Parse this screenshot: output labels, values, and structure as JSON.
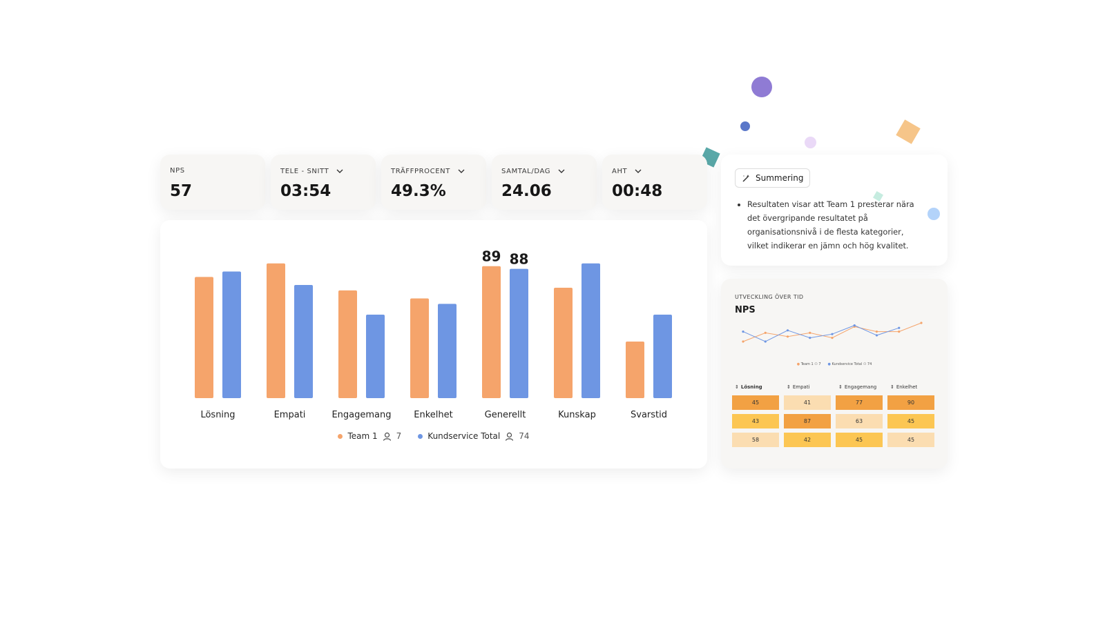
{
  "kpis": [
    {
      "label": "NPS",
      "value": "57",
      "dropdown": false
    },
    {
      "label": "TELE - SNITT",
      "value": "03:54",
      "dropdown": true
    },
    {
      "label": "TRÄFFPROCENT",
      "value": "49.3%",
      "dropdown": true
    },
    {
      "label": "SAMTAL/DAG",
      "value": "24.06",
      "dropdown": true
    },
    {
      "label": "AHT",
      "value": "00:48",
      "dropdown": true
    }
  ],
  "chart_data": {
    "type": "bar",
    "categories": [
      "Lösning",
      "Empati",
      "Engagemang",
      "Enkelhet",
      "Generellt",
      "Kunskap",
      "Svarstid"
    ],
    "series": [
      {
        "name": "Team 1",
        "values": [
          85,
          90,
          80,
          77,
          89,
          81,
          61
        ],
        "color": "#f5a46b"
      },
      {
        "name": "Kundservice Total",
        "values": [
          87,
          82,
          71,
          75,
          88,
          90,
          71
        ],
        "color": "#6e96e3"
      }
    ],
    "data_labels": {
      "category": "Generellt",
      "values": [
        "89",
        "88"
      ]
    },
    "ylim": [
      40,
      92
    ]
  },
  "legend": {
    "team1": {
      "label": "Team 1",
      "count": "7",
      "color": "#f5a46b"
    },
    "total": {
      "label": "Kundservice Total",
      "count": "74",
      "color": "#6e96e3"
    }
  },
  "summary": {
    "button_label": "Summering",
    "text": "Resultaten visar att Team 1 presterar nära det övergripande resultatet på organisationsnivå i de flesta kategorier, vilket indikerar en jämn och hög kvalitet."
  },
  "trend": {
    "small_title": "UTVECKLING ÖVER TID",
    "title": "NPS",
    "chart_data": {
      "type": "line",
      "series": [
        {
          "name": "Team 1",
          "values": [
            45,
            52,
            49,
            52,
            48,
            57,
            53,
            53,
            60
          ],
          "color": "#f5a46b"
        },
        {
          "name": "Kundservice Total",
          "values": [
            53,
            45,
            54,
            48,
            51,
            58,
            50,
            56
          ],
          "color": "#6e96e3"
        }
      ]
    },
    "legend": {
      "team1": "Team 1",
      "team1_count": "7",
      "total": "Kundservice Total",
      "total_count": "74"
    }
  },
  "heatmap": {
    "headers": [
      "Lösning",
      "Empati",
      "Engagemang",
      "Enkelhet"
    ],
    "rows": [
      [
        {
          "v": "45",
          "c": "#f2a143"
        },
        {
          "v": "41",
          "c": "#fbddb1"
        },
        {
          "v": "77",
          "c": "#f2a143"
        },
        {
          "v": "90",
          "c": "#f2a143"
        }
      ],
      [
        {
          "v": "43",
          "c": "#fcc653"
        },
        {
          "v": "87",
          "c": "#f2a143"
        },
        {
          "v": "63",
          "c": "#fbddb1"
        },
        {
          "v": "45",
          "c": "#fcc653"
        }
      ],
      [
        {
          "v": "58",
          "c": "#fbddb1"
        },
        {
          "v": "42",
          "c": "#fcc653"
        },
        {
          "v": "45",
          "c": "#fcc653"
        },
        {
          "v": "45",
          "c": "#fbddb1"
        }
      ]
    ]
  },
  "decor_colors": [
    "#8f7bd4",
    "#5a77c9",
    "#e7d6f6",
    "#5aa8a8",
    "#f6c589",
    "#ea9a62",
    "#c6ece0",
    "#b3d3fa"
  ]
}
